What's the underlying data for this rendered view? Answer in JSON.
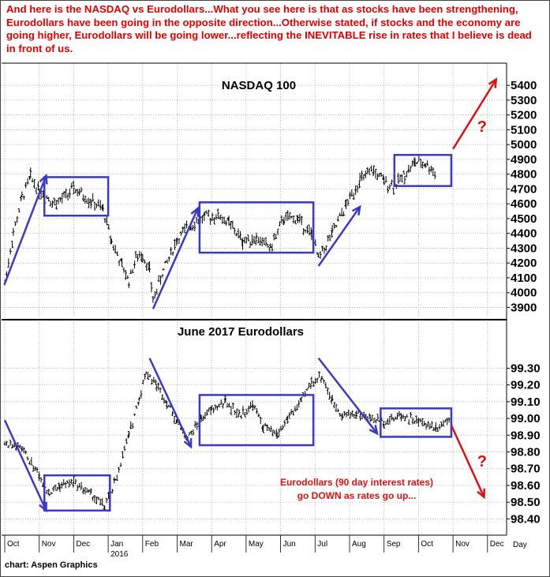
{
  "headline": {
    "part1": "And here is the NASDAQ vs Eurodollars...What you see here is that as stocks have been strengthening, Eurodollars have been going in the opposite direction...Otherwise stated, if stocks and the economy are going higher, Eurodollars will be going lower...reflecting the ",
    "emph": "INEVITABLE",
    "part2": " rise in rates that I believe is dead in front of us."
  },
  "credit": "chart: Aspen Graphics",
  "axis_unit": "Day",
  "year_label": "2016",
  "annotation_question": "?",
  "eurodollar_note": [
    "Eurodollars (90 day interest rates)",
    "go DOWN as rates go up..."
  ],
  "colors": {
    "bars": "#000000",
    "annot": "#3a3ac8",
    "red": "#dd1111",
    "grid": "#9a9a9a",
    "divider": "#000000"
  },
  "chart_data": [
    {
      "type": "bar",
      "subtype": "ohlc",
      "title": "NASDAQ 100",
      "x_ticks": [
        "Oct",
        "Nov",
        "Dec",
        "Jan",
        "Feb",
        "Mar",
        "Apr",
        "May",
        "Jun",
        "Jul",
        "Aug",
        "Sep",
        "Oct",
        "Nov",
        "Dec"
      ],
      "y_ticks": [
        "3900",
        "4000",
        "4100",
        "4200",
        "4300",
        "4400",
        "4500",
        "4600",
        "4700",
        "4800",
        "4900",
        "5000",
        "5100",
        "5200",
        "5300",
        "5400"
      ],
      "ylim": [
        3860,
        5470
      ],
      "path": [
        [
          0,
          4060
        ],
        [
          0.25,
          4400
        ],
        [
          0.5,
          4640
        ],
        [
          0.75,
          4780
        ],
        [
          1,
          4690
        ],
        [
          1.5,
          4600
        ],
        [
          2,
          4700
        ],
        [
          2.5,
          4620
        ],
        [
          2.85,
          4560
        ],
        [
          3.1,
          4350
        ],
        [
          3.4,
          4180
        ],
        [
          3.6,
          4080
        ],
        [
          3.8,
          4230
        ],
        [
          4.0,
          4260
        ],
        [
          4.2,
          4150
        ],
        [
          4.3,
          3950
        ],
        [
          4.6,
          4150
        ],
        [
          5.0,
          4360
        ],
        [
          5.4,
          4460
        ],
        [
          5.8,
          4510
        ],
        [
          6.2,
          4520
        ],
        [
          6.5,
          4470
        ],
        [
          6.9,
          4350
        ],
        [
          7.3,
          4370
        ],
        [
          7.7,
          4300
        ],
        [
          8.1,
          4500
        ],
        [
          8.5,
          4500
        ],
        [
          8.9,
          4390
        ],
        [
          9.1,
          4230
        ],
        [
          9.5,
          4400
        ],
        [
          9.9,
          4590
        ],
        [
          10.3,
          4760
        ],
        [
          10.7,
          4820
        ],
        [
          11.0,
          4750
        ],
        [
          11.3,
          4720
        ],
        [
          11.6,
          4800
        ],
        [
          11.9,
          4880
        ],
        [
          12.2,
          4870
        ],
        [
          12.5,
          4810
        ]
      ],
      "annotations": {
        "arrows": [
          [
            [
              0,
              4060
            ],
            [
              1.2,
              4790
            ]
          ],
          [
            [
              4.3,
              3890
            ],
            [
              5.6,
              4570
            ]
          ],
          [
            [
              9.1,
              4180
            ],
            [
              10.3,
              4580
            ]
          ]
        ],
        "boxes": [
          [
            [
              1.15,
              4520
            ],
            [
              3.0,
              4780
            ]
          ],
          [
            [
              5.65,
              4270
            ],
            [
              8.95,
              4610
            ]
          ],
          [
            [
              11.3,
              4720
            ],
            [
              12.95,
              4930
            ]
          ]
        ],
        "projection": [
          [
            13.0,
            4970
          ],
          [
            14.25,
            5440
          ]
        ],
        "question_mark": [
          13.7,
          5130
        ]
      }
    },
    {
      "type": "bar",
      "subtype": "ohlc",
      "title": "June 2017 Eurodollars",
      "x_ticks": [
        "Oct",
        "Nov",
        "Dec",
        "Jan",
        "Feb",
        "Mar",
        "Apr",
        "May",
        "Jun",
        "Jul",
        "Aug",
        "Sep",
        "Oct",
        "Nov",
        "Dec"
      ],
      "y_ticks": [
        "98.40",
        "98.50",
        "98.60",
        "98.70",
        "98.80",
        "98.90",
        "99.00",
        "99.10",
        "99.20",
        "99.30"
      ],
      "ylim": [
        98.35,
        99.42
      ],
      "path": [
        [
          0,
          98.85
        ],
        [
          0.5,
          98.82
        ],
        [
          1,
          98.66
        ],
        [
          1.3,
          98.55
        ],
        [
          1.6,
          98.6
        ],
        [
          2.0,
          98.62
        ],
        [
          2.5,
          98.55
        ],
        [
          2.9,
          98.47
        ],
        [
          3.2,
          98.62
        ],
        [
          3.6,
          98.9
        ],
        [
          3.9,
          99.12
        ],
        [
          4.1,
          99.28
        ],
        [
          4.4,
          99.2
        ],
        [
          4.7,
          99.1
        ],
        [
          5.0,
          98.98
        ],
        [
          5.3,
          98.88
        ],
        [
          5.7,
          99.0
        ],
        [
          6.0,
          99.05
        ],
        [
          6.4,
          99.1
        ],
        [
          6.8,
          99.02
        ],
        [
          7.2,
          99.08
        ],
        [
          7.5,
          98.95
        ],
        [
          7.9,
          98.9
        ],
        [
          8.2,
          99.0
        ],
        [
          8.6,
          99.1
        ],
        [
          8.9,
          99.22
        ],
        [
          9.2,
          99.25
        ],
        [
          9.5,
          99.1
        ],
        [
          9.8,
          99.02
        ],
        [
          10.2,
          99.03
        ],
        [
          10.6,
          99.0
        ],
        [
          11.0,
          98.98
        ],
        [
          11.5,
          99.02
        ],
        [
          12.0,
          98.98
        ],
        [
          12.5,
          98.95
        ],
        [
          12.9,
          99.0
        ]
      ],
      "annotations": {
        "arrows": [
          [
            [
              0,
              98.99
            ],
            [
              1.2,
              98.45
            ]
          ],
          [
            [
              4.2,
              99.36
            ],
            [
              5.4,
              98.83
            ]
          ],
          [
            [
              9.1,
              99.36
            ],
            [
              10.8,
              98.91
            ]
          ]
        ],
        "boxes": [
          [
            [
              1.15,
              98.45
            ],
            [
              3.05,
              98.66
            ]
          ],
          [
            [
              5.65,
              98.84
            ],
            [
              8.95,
              99.14
            ]
          ],
          [
            [
              10.9,
              98.89
            ],
            [
              12.95,
              99.06
            ]
          ]
        ],
        "projection": [
          [
            12.95,
            98.96
          ],
          [
            13.9,
            98.53
          ]
        ],
        "question_mark": [
          13.7,
          98.75
        ]
      }
    }
  ]
}
